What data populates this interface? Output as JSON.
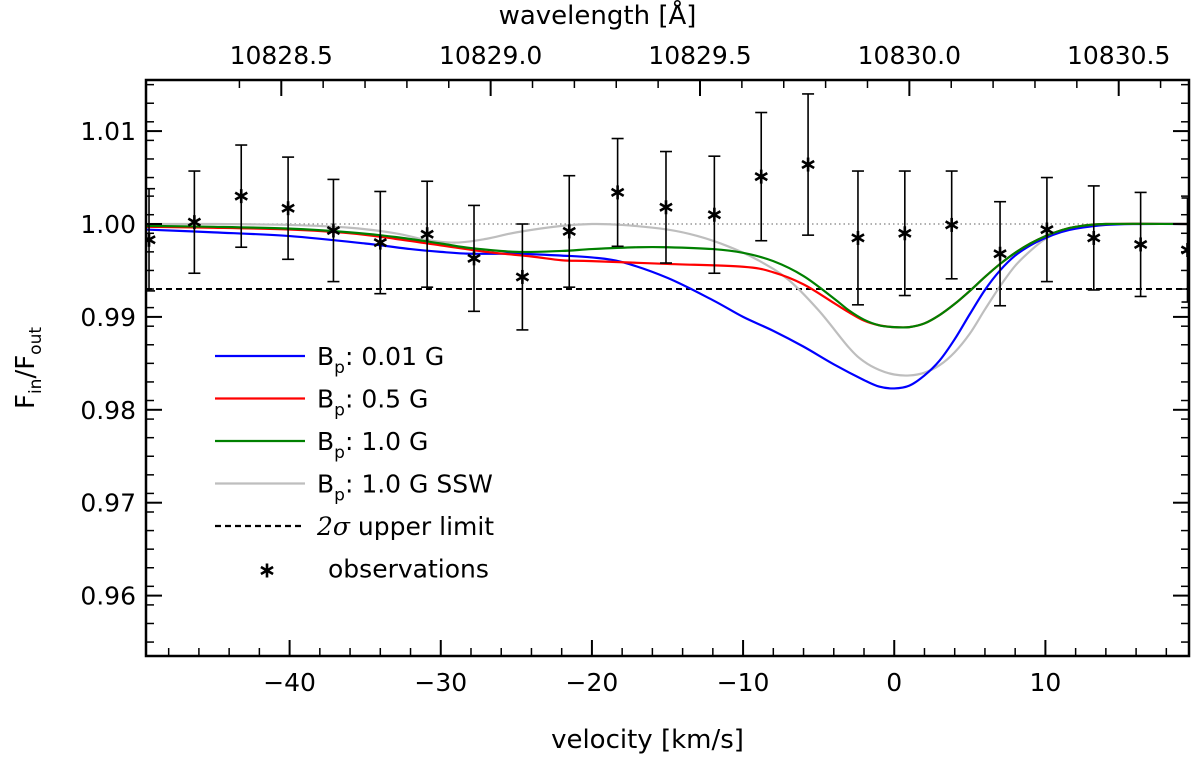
{
  "chart_data": {
    "type": "line",
    "x_axis": {
      "label": "velocity [km/s]",
      "range": [
        -49.5,
        19.5
      ],
      "ticks": [
        -40,
        -30,
        -20,
        -10,
        0,
        10
      ],
      "tick_labels": [
        "−40",
        "−30",
        "−20",
        "−10",
        "0",
        "10"
      ]
    },
    "top_axis": {
      "label": "wavelength [Å]",
      "ticks": [
        10828.5,
        10829.0,
        10829.5,
        10830.0,
        10830.5
      ],
      "tick_labels": [
        "10828.5",
        "10829.0",
        "10829.5",
        "10830.0",
        "10830.5"
      ],
      "velocity_positions": [
        -40.55,
        -26.7,
        -12.85,
        1.0,
        14.85
      ]
    },
    "y_axis": {
      "label_main": "F",
      "label_sub_num": "in",
      "label_slash": "/F",
      "label_sub_den": "out",
      "range": [
        0.9535,
        1.0155
      ],
      "ticks": [
        0.96,
        0.97,
        0.98,
        0.99,
        1.0,
        1.01
      ],
      "tick_labels": [
        "0.96",
        "0.97",
        "0.98",
        "0.99",
        "1.00",
        "1.01"
      ]
    },
    "reference_lines": [
      {
        "name": "unity",
        "y": 1.0,
        "style": "dotted",
        "color": "#808080"
      },
      {
        "name": "2-sigma upper limit",
        "y": 0.993,
        "style": "dashed",
        "color": "#000000"
      }
    ],
    "series": [
      {
        "name": "Bp: 0.01 G",
        "color": "#0000ff",
        "x": [
          -49.5,
          -45,
          -40,
          -35,
          -32,
          -30,
          -28,
          -25,
          -22,
          -20,
          -18,
          -15,
          -12,
          -10,
          -8,
          -6,
          -4,
          -2,
          -1,
          0,
          1,
          2,
          3,
          4,
          5,
          6,
          7,
          8,
          9,
          10,
          11,
          12,
          14,
          16,
          19.5
        ],
        "y": [
          0.9994,
          0.9991,
          0.9987,
          0.9979,
          0.9973,
          0.997,
          0.9968,
          0.9968,
          0.9966,
          0.9964,
          0.9959,
          0.9942,
          0.9918,
          0.99,
          0.9885,
          0.9868,
          0.9849,
          0.9832,
          0.9825,
          0.9823,
          0.9826,
          0.9837,
          0.9853,
          0.9876,
          0.9903,
          0.9929,
          0.995,
          0.9966,
          0.9977,
          0.9985,
          0.9991,
          0.9995,
          0.9999,
          1.0,
          1.0
        ]
      },
      {
        "name": "Bp: 0.5 G",
        "color": "#ff0000",
        "x": [
          -49.5,
          -45,
          -40,
          -36,
          -33,
          -30,
          -27,
          -24,
          -22,
          -20,
          -15,
          -10,
          -8,
          -6,
          -4,
          -3,
          -2,
          -1,
          0,
          1,
          2,
          3,
          4,
          5,
          6,
          7,
          8,
          9,
          10,
          11,
          12,
          14,
          19.5
        ],
        "y": [
          0.9997,
          0.9996,
          0.9994,
          0.999,
          0.9984,
          0.9977,
          0.997,
          0.9965,
          0.9961,
          0.996,
          0.9957,
          0.9954,
          0.9948,
          0.9935,
          0.9915,
          0.9905,
          0.9896,
          0.9891,
          0.9889,
          0.9889,
          0.9893,
          0.9902,
          0.9914,
          0.9928,
          0.9943,
          0.9957,
          0.9969,
          0.9979,
          0.9987,
          0.9993,
          0.9997,
          1.0,
          1.0
        ]
      },
      {
        "name": "Bp: 1.0 G",
        "color": "#008000",
        "x": [
          -49.5,
          -45,
          -40,
          -36,
          -33,
          -30,
          -28,
          -25,
          -22,
          -20,
          -17,
          -15,
          -12,
          -10,
          -8,
          -6,
          -4,
          -3,
          -2,
          -1,
          0,
          1,
          2,
          3,
          4,
          5,
          6,
          7,
          8,
          9,
          10,
          11,
          12,
          14,
          19.5
        ],
        "y": [
          0.9998,
          0.9997,
          0.9995,
          0.9991,
          0.9986,
          0.9979,
          0.9974,
          0.997,
          0.9971,
          0.9973,
          0.9975,
          0.9975,
          0.9973,
          0.9969,
          0.996,
          0.9944,
          0.992,
          0.9907,
          0.9897,
          0.9891,
          0.9889,
          0.9889,
          0.9893,
          0.9902,
          0.9914,
          0.9928,
          0.9943,
          0.9957,
          0.9969,
          0.9979,
          0.9987,
          0.9993,
          0.9997,
          1.0,
          1.0
        ]
      },
      {
        "name": "Bp: 1.0 G SSW",
        "color": "#bebebe",
        "x": [
          -49.5,
          -45,
          -40,
          -36,
          -33,
          -31,
          -29,
          -27,
          -25,
          -22,
          -20,
          -18,
          -15,
          -13,
          -11,
          -9,
          -7,
          -5,
          -3,
          -2,
          -1,
          0,
          1,
          2,
          3,
          4,
          5,
          6,
          7,
          8,
          9,
          10,
          11,
          12,
          14,
          19.5
        ],
        "y": [
          1.0,
          1.0,
          0.9999,
          0.9996,
          0.999,
          0.9983,
          0.998,
          0.9984,
          0.9991,
          0.9998,
          1.0,
          0.9999,
          0.9994,
          0.9987,
          0.9976,
          0.9961,
          0.994,
          0.9907,
          0.9867,
          0.9852,
          0.9843,
          0.9838,
          0.9837,
          0.984,
          0.9848,
          0.9862,
          0.9882,
          0.9908,
          0.9933,
          0.9955,
          0.9971,
          0.9984,
          0.9992,
          0.9997,
          1.0,
          1.0
        ]
      }
    ],
    "observations": {
      "name": "observations",
      "marker": "asterisk",
      "x": [
        -49.3,
        -46.3,
        -43.2,
        -40.1,
        -37.1,
        -34.0,
        -30.9,
        -27.8,
        -24.6,
        -21.5,
        -18.3,
        -15.1,
        -11.9,
        -8.8,
        -5.7,
        -2.4,
        0.7,
        3.8,
        7.0,
        10.1,
        13.2,
        16.3,
        19.4
      ],
      "y": [
        0.9983,
        1.0002,
        1.003,
        1.0017,
        0.9993,
        0.998,
        0.9989,
        0.9963,
        0.9943,
        0.9992,
        1.0034,
        1.0018,
        1.001,
        1.0051,
        1.0064,
        0.9985,
        0.999,
        0.9999,
        0.9968,
        0.9994,
        0.9985,
        0.9978,
        0.9972
      ],
      "err": [
        0.0055,
        0.0055,
        0.0055,
        0.0055,
        0.0055,
        0.0055,
        0.0057,
        0.0057,
        0.0057,
        0.006,
        0.0058,
        0.006,
        0.0063,
        0.0069,
        0.0076,
        0.0072,
        0.0067,
        0.0058,
        0.0056,
        0.0056,
        0.0056,
        0.0056,
        0.0056
      ]
    },
    "legend": {
      "placement": "lower-left",
      "entries": [
        {
          "prefix": "B",
          "sub": "p",
          "rest": ": 0.01 G",
          "color": "#0000ff",
          "style": "solid"
        },
        {
          "prefix": "B",
          "sub": "p",
          "rest": ": 0.5 G",
          "color": "#ff0000",
          "style": "solid"
        },
        {
          "prefix": "B",
          "sub": "p",
          "rest": ": 1.0 G",
          "color": "#008000",
          "style": "solid"
        },
        {
          "prefix": "B",
          "sub": "p",
          "rest": ": 1.0 G SSW",
          "color": "#bebebe",
          "style": "solid"
        },
        {
          "prefix": "2σ",
          "sub": "",
          "rest": " upper limit",
          "color": "#000000",
          "style": "dashed"
        },
        {
          "prefix": "",
          "sub": "",
          "rest": "observations",
          "color": "#000000",
          "style": "marker"
        }
      ]
    }
  }
}
